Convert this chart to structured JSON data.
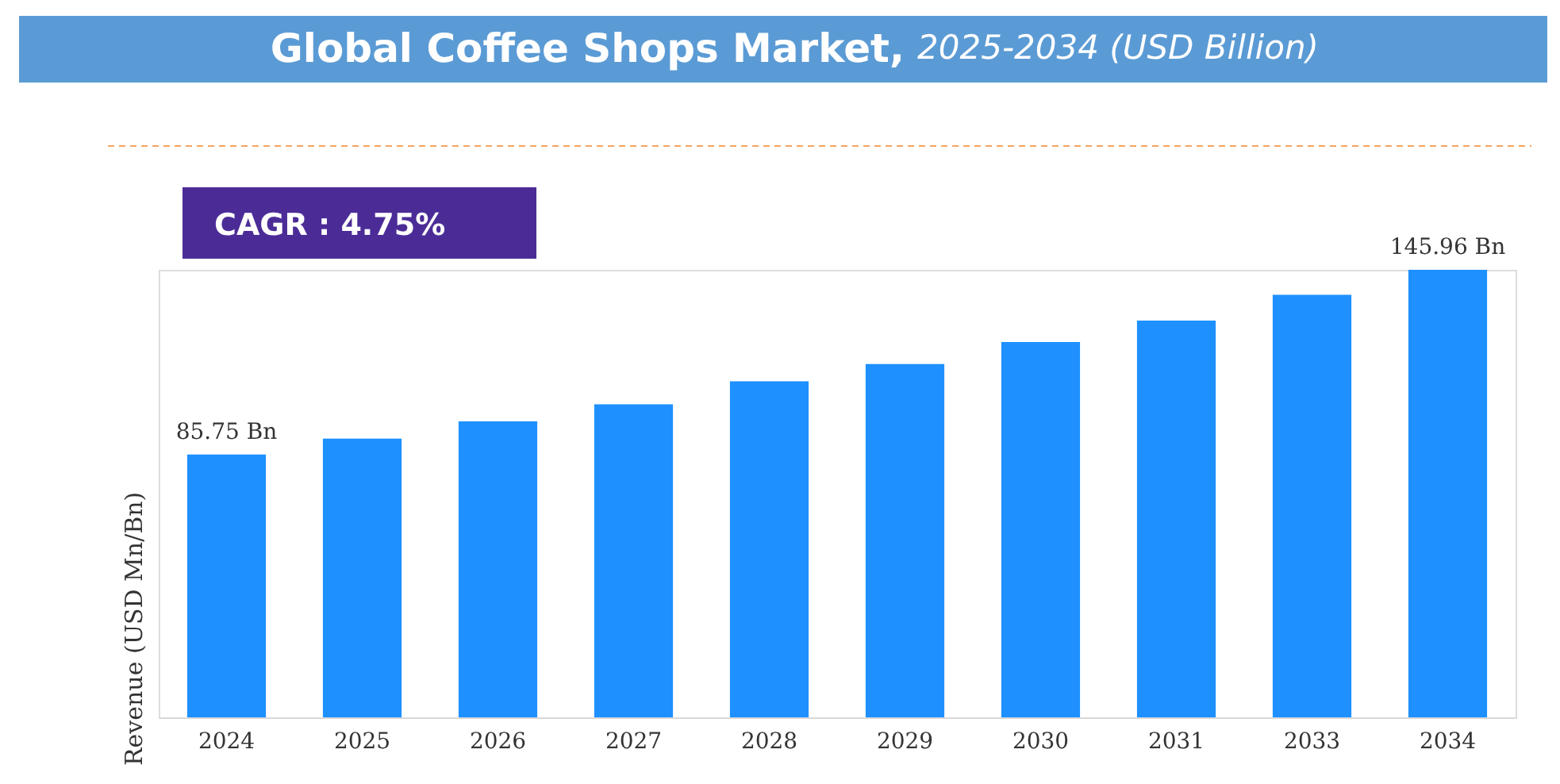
{
  "chart_data": {
    "type": "bar",
    "title": "Global Coffee Shops Market,",
    "subtitle": "2025-2034 (USD Billion)",
    "ylabel": "Revenue (USD Mn/Bn)",
    "categories": [
      "2024",
      "2025",
      "2026",
      "2027",
      "2028",
      "2029",
      "2030",
      "2031",
      "2033",
      "2034"
    ],
    "values": [
      85.75,
      90.9,
      96.5,
      102.1,
      109.6,
      115.2,
      122.4,
      129.4,
      137.8,
      145.96
    ],
    "value_labels": [
      "85.75 Bn",
      null,
      null,
      null,
      null,
      null,
      null,
      null,
      null,
      "145.96 Bn"
    ],
    "color": "#1e90ff",
    "tick_labels": "x",
    "grid": false,
    "annotations": [
      "CAGR :  4.75%"
    ]
  }
}
